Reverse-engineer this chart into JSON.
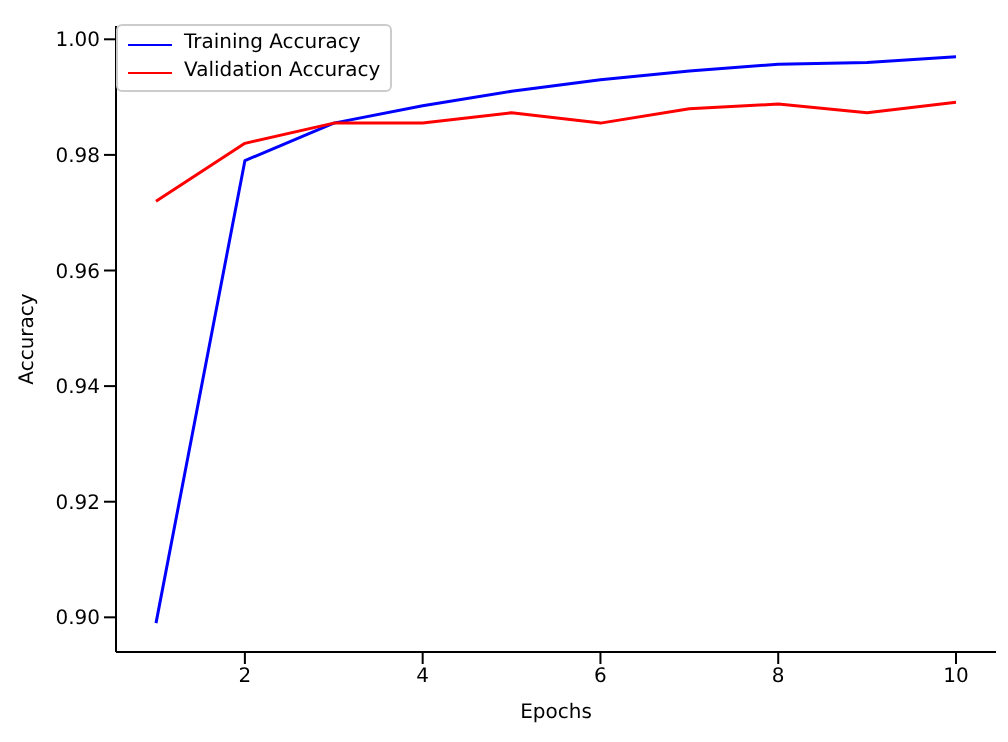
{
  "chart_data": {
    "type": "line",
    "xlabel": "Epochs",
    "ylabel": "Accuracy",
    "x": [
      1,
      2,
      3,
      4,
      5,
      6,
      7,
      8,
      9,
      10
    ],
    "series": [
      {
        "name": "Training Accuracy",
        "color": "#0000ff",
        "values": [
          0.899,
          0.979,
          0.9855,
          0.9885,
          0.991,
          0.993,
          0.9945,
          0.9957,
          0.996,
          0.997
        ]
      },
      {
        "name": "Validation Accuracy",
        "color": "#ff0000",
        "values": [
          0.972,
          0.982,
          0.9855,
          0.9855,
          0.9873,
          0.9855,
          0.988,
          0.9888,
          0.9873,
          0.9891
        ]
      }
    ],
    "xlim": [
      0.55,
      10.45
    ],
    "ylim": [
      0.894,
      1.0023
    ],
    "xticks": [
      2,
      4,
      6,
      8,
      10
    ],
    "yticks": [
      {
        "value": 0.9,
        "label": "0.90"
      },
      {
        "value": 0.92,
        "label": "0.92"
      },
      {
        "value": 0.94,
        "label": "0.94"
      },
      {
        "value": 0.96,
        "label": "0.96"
      },
      {
        "value": 0.98,
        "label": "0.98"
      },
      {
        "value": 1.0,
        "label": "1.00"
      }
    ],
    "legend": "top left",
    "grid": false,
    "marker": "none",
    "line_style": "solid"
  }
}
